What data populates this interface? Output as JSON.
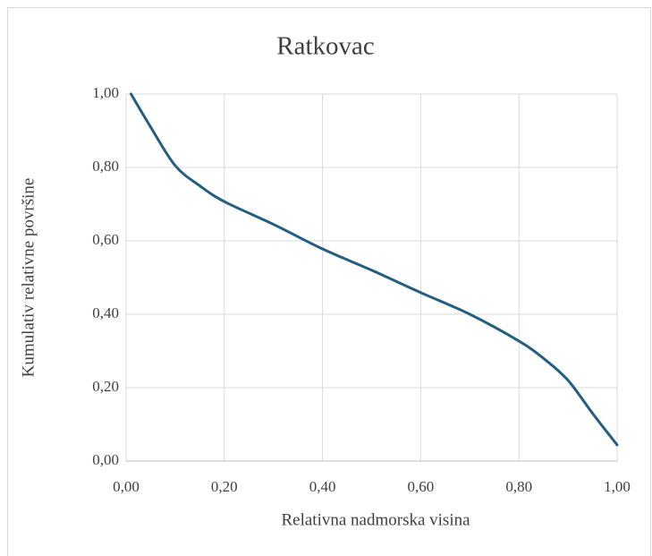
{
  "chart_data": {
    "type": "line",
    "title": "Ratkovac",
    "x_label": "Relativna nadmorska visina",
    "y_label": "Kumulativ relativne površine",
    "series": [
      {
        "color": "#255e7f",
        "x": [
          0.01,
          0.05,
          0.1,
          0.15,
          0.2,
          0.3,
          0.4,
          0.5,
          0.6,
          0.7,
          0.8,
          0.85,
          0.9,
          0.95,
          1.0
        ],
        "values": [
          1.0,
          0.91,
          0.805,
          0.75,
          0.707,
          0.645,
          0.578,
          0.52,
          0.459,
          0.4,
          0.327,
          0.28,
          0.22,
          0.13,
          0.044
        ]
      }
    ],
    "xlim": [
      0,
      1
    ],
    "ylim": [
      0,
      1
    ],
    "xticks": [
      {
        "value": 0,
        "label": "0,00"
      },
      {
        "value": 0.2,
        "label": "0,20"
      },
      {
        "value": 0.4,
        "label": "0,40"
      },
      {
        "value": 0.6,
        "label": "0,60"
      },
      {
        "value": 0.8,
        "label": "0,80"
      },
      {
        "value": 1,
        "label": "1,00"
      }
    ],
    "yticks": [
      {
        "value": 0,
        "label": "0,00"
      },
      {
        "value": 0.2,
        "label": "0,20"
      },
      {
        "value": 0.4,
        "label": "0,40"
      },
      {
        "value": 0.6,
        "label": "0,60"
      },
      {
        "value": 0.8,
        "label": "0,80"
      },
      {
        "value": 1,
        "label": "1,00"
      }
    ],
    "grid": true
  }
}
